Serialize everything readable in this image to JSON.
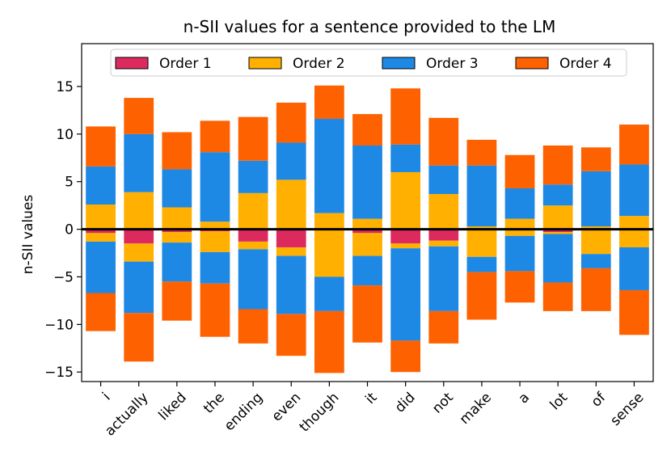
{
  "chart_data": {
    "type": "bar",
    "stacked": true,
    "title": "n-SII values for a sentence provided to the LM",
    "xlabel": "",
    "ylabel": "n-SII values",
    "ylim": [
      -16,
      19.5
    ],
    "yticks": [
      -15,
      -10,
      -5,
      0,
      5,
      10,
      15
    ],
    "ytick_labels": [
      "−15",
      "−10",
      "−5",
      "0",
      "5",
      "10",
      "15"
    ],
    "categories": [
      "i",
      "actually",
      "liked",
      "the",
      "ending",
      "even",
      "though",
      "it",
      "did",
      "not",
      "make",
      "a",
      "lot",
      "of",
      "sense"
    ],
    "legend_position": "top-center",
    "zero_line": true,
    "series": [
      {
        "name": "Order 1",
        "color": "#dc2a5e",
        "positive": [
          0,
          0,
          0,
          0,
          0,
          0,
          0,
          0,
          0,
          0,
          0,
          0,
          0,
          0,
          0
        ],
        "negative": [
          -0.4,
          -1.5,
          -0.3,
          -0.2,
          -1.3,
          -1.9,
          -0.1,
          -0.4,
          -1.5,
          -1.2,
          -0.1,
          -0.1,
          -0.3,
          -0.1,
          -0.1
        ]
      },
      {
        "name": "Order 2",
        "color": "#ffb000",
        "positive": [
          2.6,
          3.9,
          2.3,
          0.8,
          3.8,
          5.2,
          1.7,
          1.1,
          6.0,
          3.7,
          0.3,
          1.1,
          2.5,
          0.3,
          1.4
        ],
        "negative": [
          -0.9,
          -1.9,
          -1.1,
          -2.2,
          -0.8,
          -0.9,
          -4.9,
          -2.4,
          -0.5,
          -0.6,
          -2.8,
          -0.6,
          -0.2,
          -2.5,
          -1.8
        ]
      },
      {
        "name": "Order 3",
        "color": "#1e88e5",
        "positive": [
          4.0,
          6.1,
          4.0,
          7.3,
          3.4,
          3.9,
          9.9,
          7.7,
          2.9,
          3.0,
          6.4,
          3.2,
          2.2,
          5.8,
          5.4
        ],
        "negative": [
          -5.4,
          -5.4,
          -4.1,
          -3.3,
          -6.3,
          -6.1,
          -3.6,
          -3.1,
          -9.7,
          -6.8,
          -1.6,
          -3.7,
          -5.1,
          -1.5,
          -4.5
        ]
      },
      {
        "name": "Order 4",
        "color": "#fe6100",
        "positive": [
          4.2,
          3.8,
          3.9,
          3.3,
          4.6,
          4.2,
          3.5,
          3.3,
          5.9,
          5.0,
          2.7,
          3.5,
          4.1,
          2.5,
          4.2
        ],
        "negative": [
          -4.0,
          -5.1,
          -4.1,
          -5.6,
          -3.6,
          -4.4,
          -6.5,
          -6.0,
          -3.3,
          -3.4,
          -5.0,
          -3.3,
          -3.0,
          -4.5,
          -4.7
        ]
      }
    ]
  }
}
